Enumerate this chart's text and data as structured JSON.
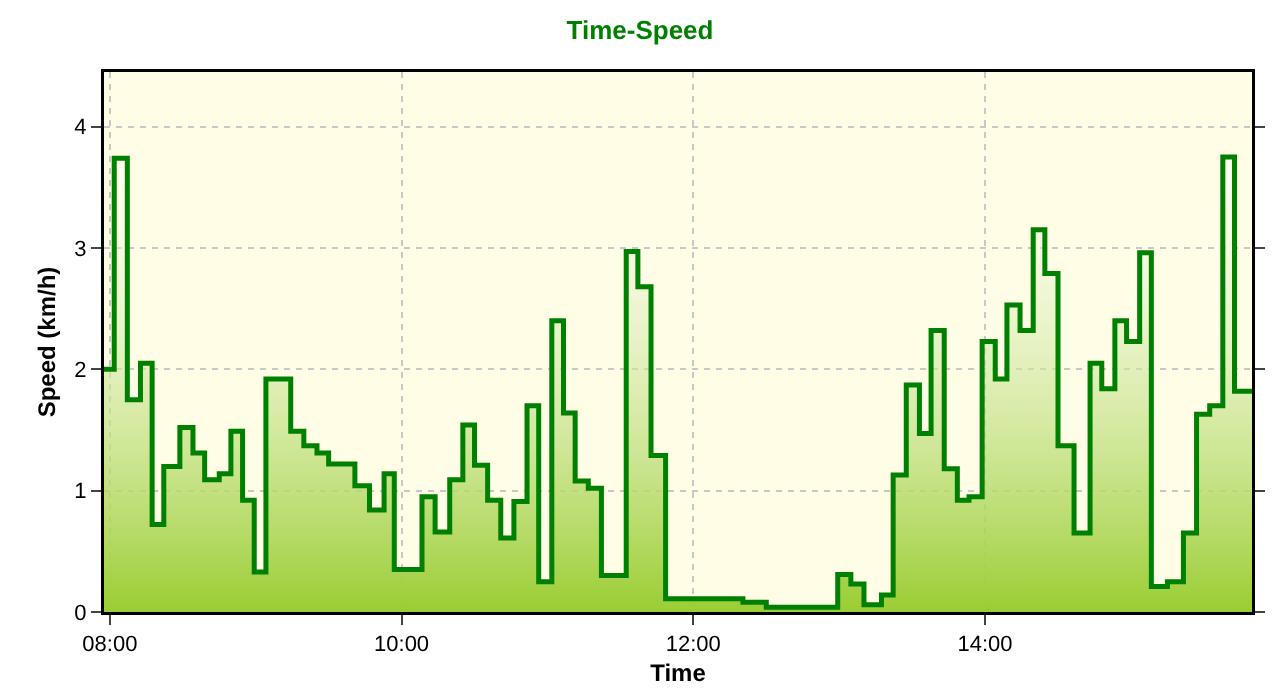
{
  "chart_data": {
    "type": "area",
    "title": "Time-Speed",
    "xlabel": "Time",
    "ylabel": "Speed (km/h)",
    "x": [
      7.96,
      8.03,
      8.03,
      8.12,
      8.12,
      8.21,
      8.21,
      8.29,
      8.29,
      8.37,
      8.37,
      8.48,
      8.48,
      8.57,
      8.57,
      8.65,
      8.65,
      8.75,
      8.75,
      8.83,
      8.83,
      8.91,
      8.91,
      8.99,
      8.99,
      9.07,
      9.07,
      9.24,
      9.24,
      9.33,
      9.33,
      9.42,
      9.42,
      9.5,
      9.5,
      9.68,
      9.68,
      9.78,
      9.78,
      9.88,
      9.88,
      9.95,
      9.95,
      10.14,
      10.14,
      10.23,
      10.23,
      10.33,
      10.33,
      10.42,
      10.42,
      10.5,
      10.5,
      10.59,
      10.59,
      10.68,
      10.68,
      10.77,
      10.77,
      10.86,
      10.86,
      10.94,
      10.94,
      11.03,
      11.03,
      11.11,
      11.11,
      11.19,
      11.19,
      11.28,
      11.28,
      11.37,
      11.37,
      11.54,
      11.54,
      11.62,
      11.62,
      11.71,
      11.71,
      11.81,
      11.81,
      12.34,
      12.34,
      12.5,
      12.5,
      12.99,
      12.99,
      13.08,
      13.08,
      13.17,
      13.17,
      13.29,
      13.29,
      13.37,
      13.37,
      13.46,
      13.46,
      13.55,
      13.55,
      13.63,
      13.63,
      13.72,
      13.72,
      13.81,
      13.81,
      13.89,
      13.89,
      13.98,
      13.98,
      14.07,
      14.07,
      14.15,
      14.15,
      14.24,
      14.24,
      14.33,
      14.33,
      14.41,
      14.41,
      14.5,
      14.5,
      14.61,
      14.61,
      14.72,
      14.72,
      14.8,
      14.8,
      14.89,
      14.89,
      14.97,
      14.97,
      15.06,
      15.06,
      15.14,
      15.14,
      15.25,
      15.25,
      15.36,
      15.36,
      15.45,
      15.45,
      15.54,
      15.54,
      15.63,
      15.63,
      15.71,
      15.71,
      15.83
    ],
    "series": [
      {
        "color": "#008000",
        "values": [
          2.0,
          2.0,
          3.74,
          3.74,
          1.75,
          1.75,
          2.05,
          2.05,
          0.72,
          0.72,
          1.2,
          1.2,
          1.52,
          1.52,
          1.31,
          1.31,
          1.09,
          1.09,
          1.14,
          1.14,
          1.49,
          1.49,
          0.92,
          0.92,
          0.33,
          0.33,
          1.92,
          1.92,
          1.49,
          1.49,
          1.37,
          1.37,
          1.31,
          1.31,
          1.22,
          1.22,
          1.04,
          1.04,
          0.84,
          0.84,
          1.14,
          1.14,
          0.35,
          0.35,
          0.95,
          0.95,
          0.66,
          0.66,
          1.09,
          1.09,
          1.54,
          1.54,
          1.21,
          1.21,
          0.92,
          0.92,
          0.61,
          0.61,
          0.91,
          0.91,
          1.7,
          1.7,
          0.25,
          0.25,
          2.4,
          2.4,
          1.64,
          1.64,
          1.08,
          1.08,
          1.02,
          1.02,
          0.3,
          0.3,
          2.97,
          2.97,
          2.68,
          2.68,
          1.29,
          1.29,
          0.11,
          0.11,
          0.08,
          0.08,
          0.04,
          0.04,
          0.31,
          0.31,
          0.23,
          0.23,
          0.06,
          0.06,
          0.14,
          0.14,
          1.13,
          1.13,
          1.87,
          1.87,
          1.47,
          1.47,
          2.32,
          2.32,
          1.18,
          1.18,
          0.92,
          0.92,
          0.95,
          0.95,
          2.23,
          2.23,
          1.92,
          1.92,
          2.53,
          2.53,
          2.32,
          2.32,
          3.15,
          3.15,
          2.79,
          2.79,
          1.37,
          1.37,
          0.65,
          0.65,
          2.05,
          2.05,
          1.84,
          1.84,
          2.4,
          2.4,
          2.23,
          2.23,
          2.96,
          2.96,
          0.21,
          0.21,
          0.25,
          0.25,
          0.65,
          0.65,
          1.63,
          1.63,
          1.7,
          1.7,
          3.75,
          3.75,
          1.82,
          1.82
        ]
      }
    ],
    "xlim": [
      7.96,
      15.83
    ],
    "xticks": [
      {
        "value": 8,
        "label": "08:00"
      },
      {
        "value": 10,
        "label": "10:00"
      },
      {
        "value": 12,
        "label": "12:00"
      },
      {
        "value": 14,
        "label": "14:00"
      }
    ],
    "ylim": [
      0,
      4.45
    ],
    "yticks": [
      0,
      1,
      2,
      3,
      4
    ],
    "grid": true
  }
}
